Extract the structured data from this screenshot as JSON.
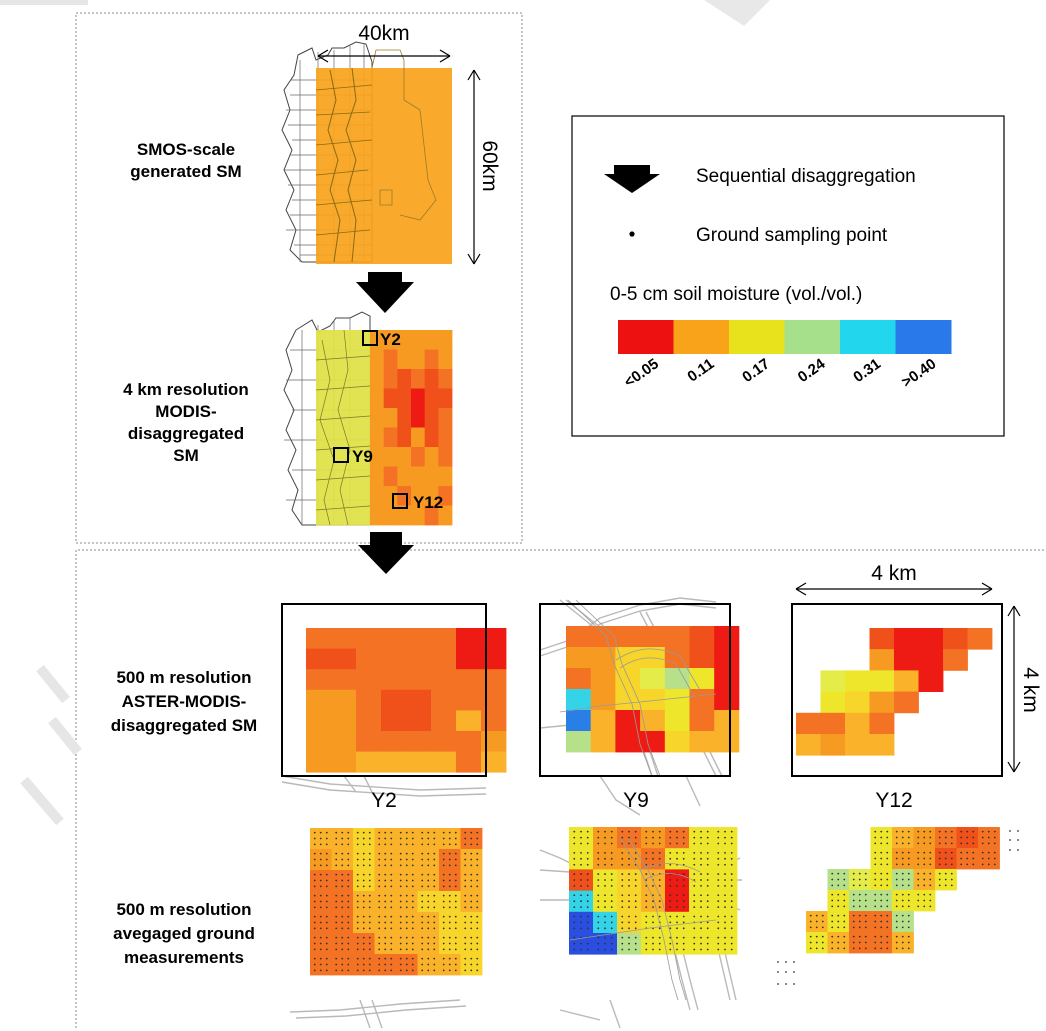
{
  "top_panel": {
    "width_label": "40km",
    "height_label": "60km",
    "smos_label": [
      "SMOS-scale",
      "generated SM"
    ],
    "modis_label": [
      "4 km resolution",
      "MODIS-",
      "disaggregated",
      "SM"
    ],
    "site_labels": [
      "Y2",
      "Y9",
      "Y12"
    ]
  },
  "legend": {
    "arrow_text": "Sequential disaggregation",
    "dot_text": "Ground sampling point",
    "title": "0-5 cm soil moisture (vol./vol.)",
    "ticks": [
      "<0.05",
      "0.11",
      "0.17",
      "0.24",
      "0.31",
      ">0.40"
    ],
    "colors": [
      "#ee1111",
      "#f9a31b",
      "#e8e21d",
      "#a6e08b",
      "#22d6ee",
      "#2a79ea"
    ]
  },
  "bottom_panel": {
    "aster_label": [
      "500 m resolution",
      "ASTER-MODIS-",
      "disaggregated SM"
    ],
    "ground_label": [
      "500 m resolution",
      "avegaged ground",
      "measurements"
    ],
    "scale_width": "4 km",
    "scale_height": "4 km",
    "site_titles": [
      "Y2",
      "Y9",
      "Y12"
    ]
  }
}
